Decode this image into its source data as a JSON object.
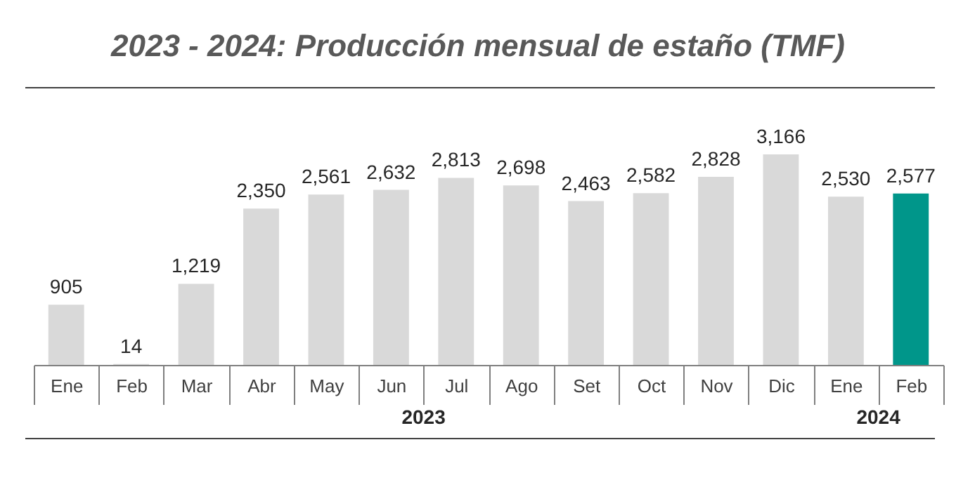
{
  "chart_data": {
    "type": "bar",
    "title": "2023 - 2024: Producción mensual de estaño (TMF)",
    "categories": [
      "Ene",
      "Feb",
      "Mar",
      "Abr",
      "May",
      "Jun",
      "Jul",
      "Ago",
      "Set",
      "Oct",
      "Nov",
      "Dic",
      "Ene",
      "Feb"
    ],
    "values": [
      905,
      14,
      1219,
      2350,
      2561,
      2632,
      2813,
      2698,
      2463,
      2582,
      2828,
      3166,
      2530,
      2577
    ],
    "colors": [
      "#d9d9d9",
      "#d9d9d9",
      "#d9d9d9",
      "#d9d9d9",
      "#d9d9d9",
      "#d9d9d9",
      "#d9d9d9",
      "#d9d9d9",
      "#d9d9d9",
      "#d9d9d9",
      "#d9d9d9",
      "#d9d9d9",
      "#d9d9d9",
      "#00968a"
    ],
    "value_labels": [
      "905",
      "14",
      "1,219",
      "2,350",
      "2,561",
      "2,632",
      "2,813",
      "2,698",
      "2,463",
      "2,582",
      "2,828",
      "3,166",
      "2,530",
      "2,577"
    ],
    "annotations": [
      "2023",
      "2024"
    ]
  }
}
